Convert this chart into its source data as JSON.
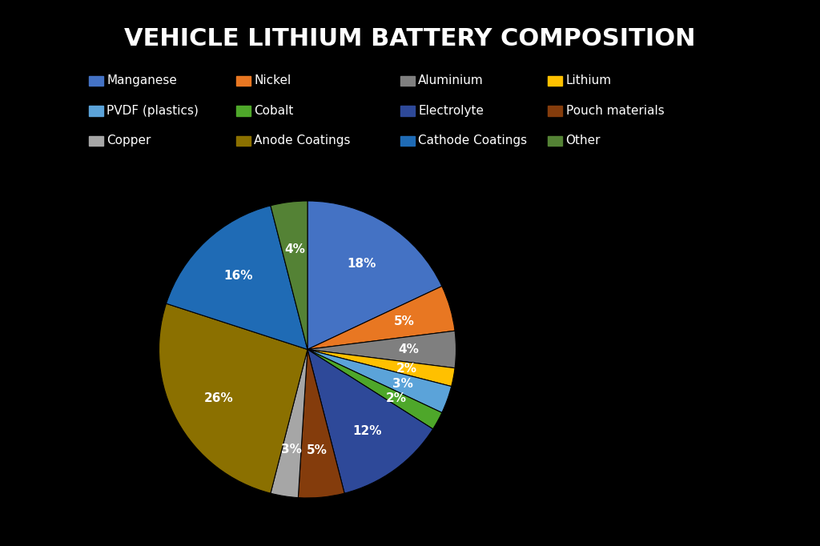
{
  "title": "VEHICLE LITHIUM BATTERY COMPOSITION",
  "labels": [
    "Manganese",
    "Nickel",
    "Aluminium",
    "Lithium",
    "PVDF (plastics)",
    "Cobalt",
    "Electrolyte",
    "Pouch materials",
    "Copper",
    "Anode Coatings",
    "Cathode Coatings",
    "Other"
  ],
  "values": [
    18,
    5,
    4,
    2,
    3,
    2,
    12,
    5,
    3,
    26,
    16,
    4
  ],
  "colors": [
    "#4472C4",
    "#E87722",
    "#7F7F7F",
    "#FFC000",
    "#5BA3D9",
    "#4EA72A",
    "#2E4999",
    "#843C0C",
    "#A6A6A6",
    "#8B7000",
    "#1F6BB5",
    "#548235"
  ],
  "background_color": "#000000",
  "text_color": "#FFFFFF",
  "title_fontsize": 22,
  "legend_fontsize": 11
}
